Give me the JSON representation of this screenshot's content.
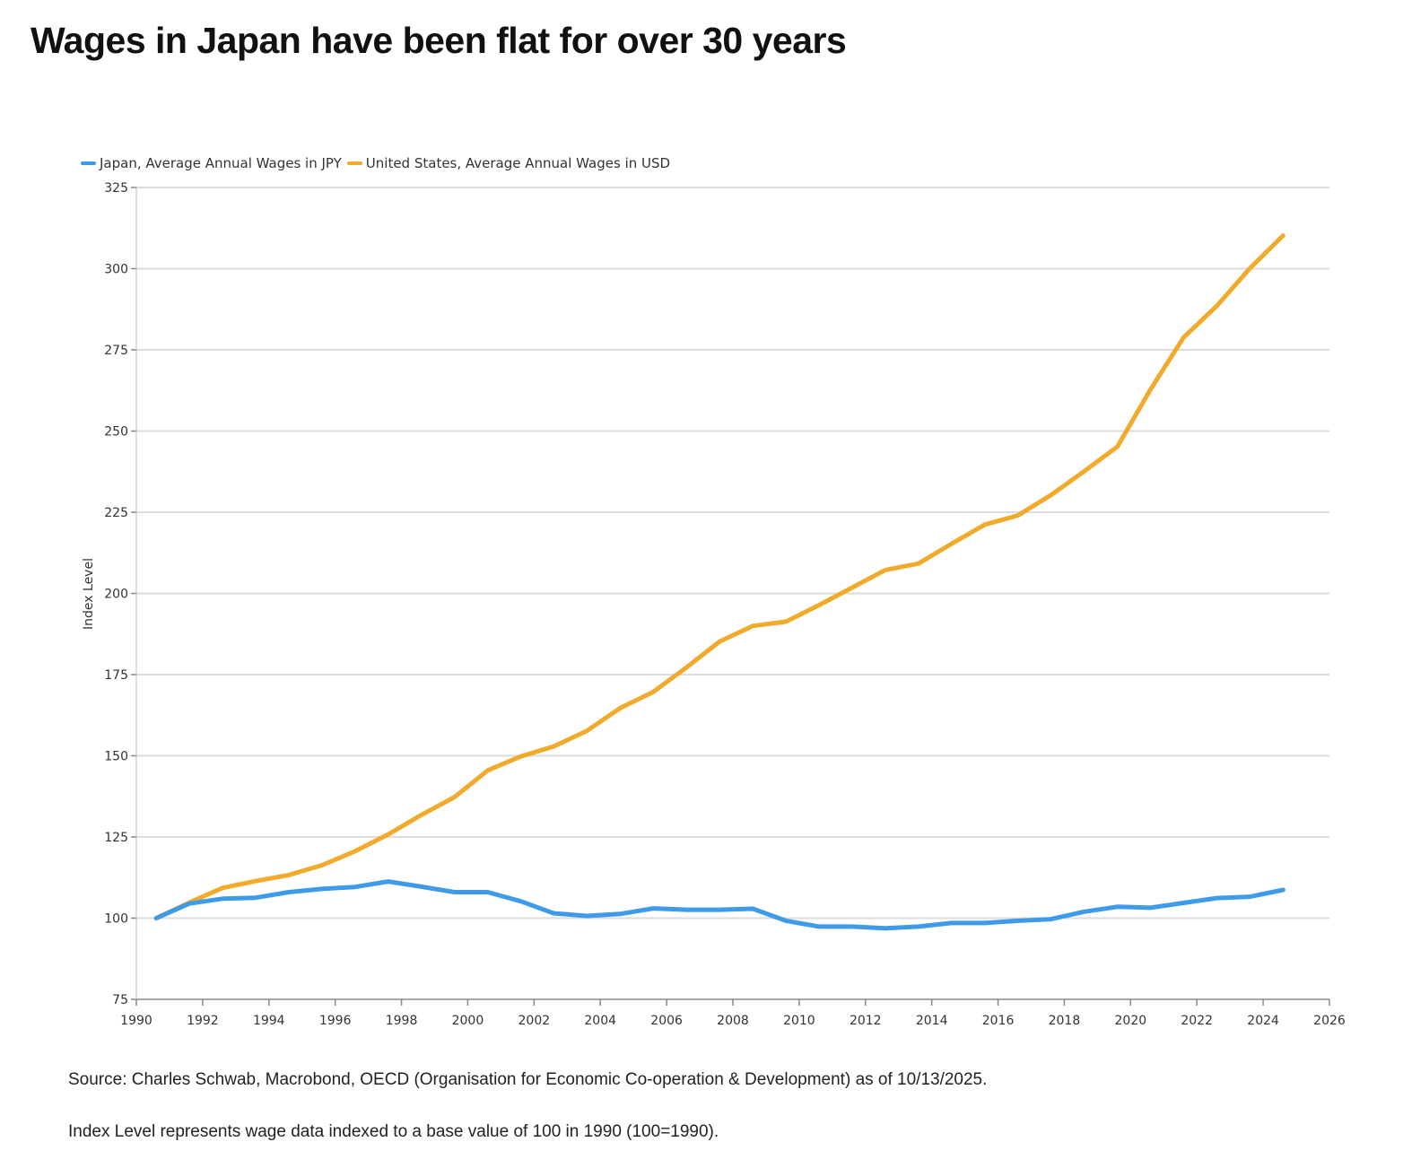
{
  "title": "Wages in Japan have been flat for over 30 years",
  "chart_data": {
    "type": "line",
    "title": "Wages in Japan have been flat for over 30 years",
    "xlabel": "",
    "ylabel": "Index Level",
    "xlim": [
      1990,
      2026
    ],
    "ylim": [
      75,
      325
    ],
    "x_ticks": [
      1990,
      1992,
      1994,
      1996,
      1998,
      2000,
      2002,
      2004,
      2006,
      2008,
      2010,
      2012,
      2014,
      2016,
      2018,
      2020,
      2022,
      2024,
      2026
    ],
    "y_ticks": [
      75,
      100,
      125,
      150,
      175,
      200,
      225,
      250,
      275,
      300,
      325
    ],
    "grid": "horizontal",
    "legend_position": "top-left",
    "x": [
      1990.6,
      1991.6,
      1992.6,
      1993.6,
      1994.6,
      1995.6,
      1996.6,
      1997.6,
      1998.6,
      1999.6,
      2000.6,
      2001.6,
      2002.6,
      2003.6,
      2004.6,
      2005.6,
      2006.6,
      2007.6,
      2008.6,
      2009.6,
      2010.6,
      2011.6,
      2012.6,
      2013.6,
      2014.6,
      2015.6,
      2016.6,
      2017.6,
      2018.6,
      2019.6,
      2020.6,
      2021.6,
      2022.6,
      2023.6,
      2024.6
    ],
    "series": [
      {
        "name": "Japan, Average Annual Wages in JPY",
        "color": "#3d9be9",
        "values": [
          100,
          104.5,
          106,
          106.3,
          108,
          109,
          109.6,
          111.3,
          109.7,
          108,
          108,
          105.2,
          101.5,
          100.7,
          101.3,
          103,
          102.6,
          102.6,
          102.9,
          99.2,
          97.4,
          97.4,
          96.9,
          97.4,
          98.5,
          98.5,
          99.2,
          99.7,
          102,
          103.5,
          103.2,
          104.7,
          106.2,
          106.6,
          108.7
        ]
      },
      {
        "name": "United States, Average Annual Wages in USD",
        "color": "#f2aa2a",
        "values": [
          100,
          104.8,
          109.3,
          111.4,
          113.3,
          116.3,
          120.6,
          125.8,
          131.8,
          137.3,
          145.5,
          149.8,
          152.9,
          157.7,
          164.7,
          169.7,
          177.2,
          185.2,
          190,
          191.3,
          196.4,
          201.8,
          207.2,
          209.2,
          215.3,
          221.2,
          224,
          230.3,
          237.6,
          245.2,
          262.8,
          278.8,
          288.5,
          300.1,
          310.2
        ]
      }
    ]
  },
  "footnotes": {
    "source": "Source: Charles Schwab, Macrobond, OECD (Organisation for Economic Co-operation & Development) as of 10/13/2025.",
    "index_note": "Index Level represents wage data indexed to a base value of 100 in 1990 (100=1990)."
  }
}
